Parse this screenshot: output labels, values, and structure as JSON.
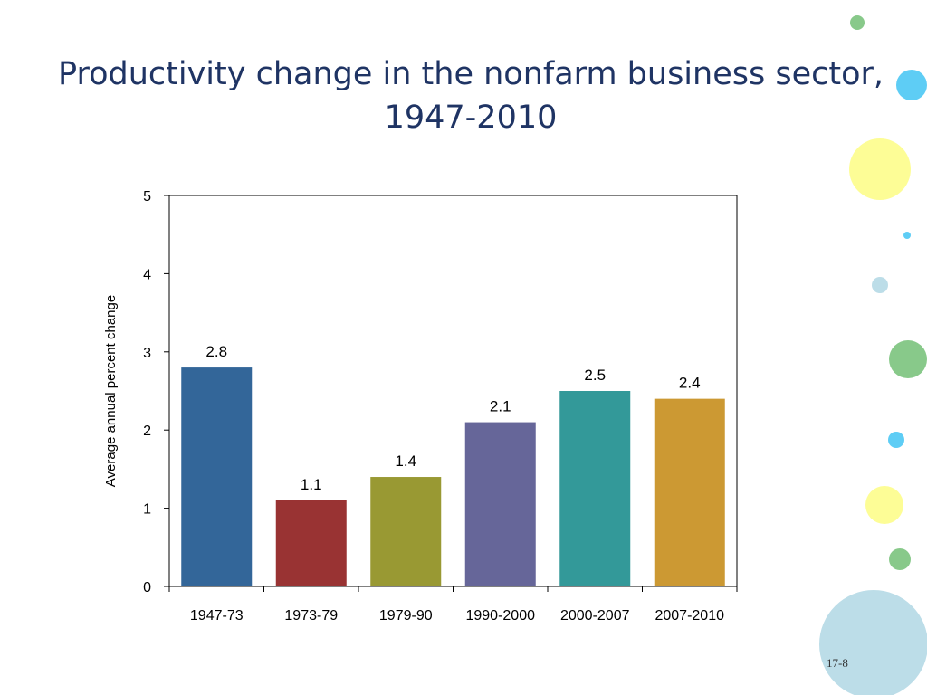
{
  "slide": {
    "title_line1": "Productivity change in the nonfarm business sector,",
    "title_line2": "1947-2010",
    "page_number": "17-8"
  },
  "chart_data": {
    "type": "bar",
    "title": "Productivity change in the nonfarm business sector, 1947-2010",
    "xlabel": "",
    "ylabel": "Average annual percent change",
    "ylim": [
      0,
      5
    ],
    "yticks": [
      0,
      1,
      2,
      3,
      4,
      5
    ],
    "grid": false,
    "legend": "none",
    "categories": [
      "1947-73",
      "1973-79",
      "1979-90",
      "1990-2000",
      "2000-2007",
      "2007-2010"
    ],
    "values": [
      2.8,
      1.1,
      1.4,
      2.1,
      2.5,
      2.4
    ],
    "data_labels": [
      "2.8",
      "1.1",
      "1.4",
      "2.1",
      "2.5",
      "2.4"
    ],
    "bar_colors": [
      "#336699",
      "#993333",
      "#999933",
      "#666699",
      "#339999",
      "#cc9933"
    ]
  },
  "decor": {
    "circle_colors": [
      "#88c98a",
      "#5ecdf5",
      "#fdfd96",
      "#5ecdf5",
      "#bcdde8",
      "#88c98a",
      "#5ecdf5",
      "#fdfd96",
      "#88c98a",
      "#bcdde8"
    ]
  }
}
